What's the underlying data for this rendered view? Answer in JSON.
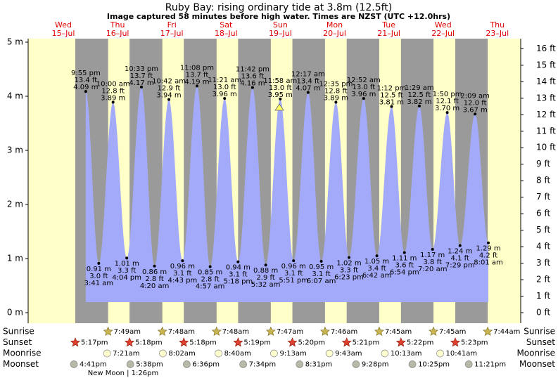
{
  "chart_data": {
    "type": "tide",
    "title": "Ruby Bay: rising  ordinary tide at 3.8m (12.5ft)",
    "subtitle": "Image captured 58 minutes before high water. Times are NZST (UTC +12.0hrs)",
    "days": [
      {
        "weekday": "Wed",
        "date": "15–Jul"
      },
      {
        "weekday": "Thu",
        "date": "16–Jul"
      },
      {
        "weekday": "Fri",
        "date": "17–Jul"
      },
      {
        "weekday": "Sat",
        "date": "18–Jul"
      },
      {
        "weekday": "Sun",
        "date": "19–Jul"
      },
      {
        "weekday": "Mon",
        "date": "20–Jul"
      },
      {
        "weekday": "Tue",
        "date": "21–Jul"
      },
      {
        "weekday": "Wed",
        "date": "22–Jul"
      },
      {
        "weekday": "Thu",
        "date": "23–Jul"
      }
    ],
    "ylim": [
      0,
      5
    ],
    "yticks": [
      {
        "value": 0,
        "label": "0 m"
      },
      {
        "value": 1,
        "label": "1 m"
      },
      {
        "value": 2,
        "label": "2 m"
      },
      {
        "value": 3,
        "label": "3 m"
      },
      {
        "value": 4,
        "label": "4 m"
      },
      {
        "value": 5,
        "label": "5 m"
      }
    ],
    "y2lim": [
      0,
      16.4
    ],
    "y2ticks": [
      {
        "value": 0,
        "label": "0 ft"
      },
      {
        "value": 1,
        "label": "1 ft"
      },
      {
        "value": 2,
        "label": "2 ft"
      },
      {
        "value": 3,
        "label": "3 ft"
      },
      {
        "value": 4,
        "label": "4 ft"
      },
      {
        "value": 5,
        "label": "5 ft"
      },
      {
        "value": 6,
        "label": "6 ft"
      },
      {
        "value": 7,
        "label": "7 ft"
      },
      {
        "value": 8,
        "label": "8 ft"
      },
      {
        "value": 9,
        "label": "9 ft"
      },
      {
        "value": 10,
        "label": "10 ft"
      },
      {
        "value": 11,
        "label": "11 ft"
      },
      {
        "value": 12,
        "label": "12 ft"
      },
      {
        "value": 13,
        "label": "13 ft"
      },
      {
        "value": 14,
        "label": "14 ft"
      },
      {
        "value": 15,
        "label": "15 ft"
      },
      {
        "value": 16,
        "label": "16 ft"
      }
    ],
    "colors": {
      "day": "#ffffc8",
      "night": "#9a9a9a",
      "water": "#a4aafa"
    },
    "tides": [
      {
        "time": "9:55 pm",
        "m": {
          "value": 4.09,
          "label": "4.09 m"
        },
        "ft": {
          "value": 13.4,
          "label": "13.4 ft"
        }
      },
      {
        "time": "3:41 am",
        "m": {
          "value": 0.91,
          "label": "0.91 m"
        },
        "ft": {
          "value": 3.0,
          "label": "3.0 ft"
        }
      },
      {
        "time": "10:00 am",
        "m": {
          "value": 3.89,
          "label": "3.89 m"
        },
        "ft": {
          "value": 12.8,
          "label": "12.8 ft"
        }
      },
      {
        "time": "4:04 pm",
        "m": {
          "value": 1.01,
          "label": "1.01 m"
        },
        "ft": {
          "value": 3.3,
          "label": "3.3 ft"
        }
      },
      {
        "time": "10:33 pm",
        "m": {
          "value": 4.17,
          "label": "4.17 m"
        },
        "ft": {
          "value": 13.7,
          "label": "13.7 ft"
        }
      },
      {
        "time": "4:20 am",
        "m": {
          "value": 0.86,
          "label": "0.86 m"
        },
        "ft": {
          "value": 2.8,
          "label": "2.8 ft"
        }
      },
      {
        "time": "10:42 am",
        "m": {
          "value": 3.94,
          "label": "3.94 m"
        },
        "ft": {
          "value": 12.9,
          "label": "12.9 ft"
        }
      },
      {
        "time": "4:43 pm",
        "m": {
          "value": 0.96,
          "label": "0.96 m"
        },
        "ft": {
          "value": 3.1,
          "label": "3.1 ft"
        }
      },
      {
        "time": "11:08 pm",
        "m": {
          "value": 4.19,
          "label": "4.19 m"
        },
        "ft": {
          "value": 13.7,
          "label": "13.7 ft"
        }
      },
      {
        "time": "4:57 am",
        "m": {
          "value": 0.85,
          "label": "0.85 m"
        },
        "ft": {
          "value": 2.8,
          "label": "2.8 ft"
        }
      },
      {
        "time": "11:21 am",
        "m": {
          "value": 3.96,
          "label": "3.96 m"
        },
        "ft": {
          "value": 13.0,
          "label": "13.0 ft"
        }
      },
      {
        "time": "5:18 pm",
        "m": {
          "value": 0.94,
          "label": "0.94 m"
        },
        "ft": {
          "value": 3.1,
          "label": "3.1 ft"
        }
      },
      {
        "time": "11:42 pm",
        "m": {
          "value": 4.16,
          "label": "4.16 m"
        },
        "ft": {
          "value": 13.6,
          "label": "13.6 ft"
        }
      },
      {
        "time": "5:32 am",
        "m": {
          "value": 0.88,
          "label": "0.88 m"
        },
        "ft": {
          "value": 2.9,
          "label": "2.9 ft"
        }
      },
      {
        "time": "11:58 am",
        "m": {
          "value": 3.95,
          "label": "3.95 m"
        },
        "ft": {
          "value": 13.0,
          "label": "13.0 ft"
        }
      },
      {
        "time": "5:51 pm",
        "m": {
          "value": 0.96,
          "label": "0.96 m"
        },
        "ft": {
          "value": 3.1,
          "label": "3.1 ft"
        }
      },
      {
        "time": "12:17 am",
        "m": {
          "value": 4.07,
          "label": "4.07 m"
        },
        "ft": {
          "value": 13.4,
          "label": "13.4 ft"
        }
      },
      {
        "time": "6:07 am",
        "m": {
          "value": 0.95,
          "label": "0.95 m"
        },
        "ft": {
          "value": 3.1,
          "label": "3.1 ft"
        }
      },
      {
        "time": "12:35 pm",
        "m": {
          "value": 3.89,
          "label": "3.89 m"
        },
        "ft": {
          "value": 12.8,
          "label": "12.8 ft"
        }
      },
      {
        "time": "6:23 pm",
        "m": {
          "value": 1.02,
          "label": "1.02 m"
        },
        "ft": {
          "value": 3.3,
          "label": "3.3 ft"
        }
      },
      {
        "time": "12:52 am",
        "m": {
          "value": 3.96,
          "label": "3.96 m"
        },
        "ft": {
          "value": 13.0,
          "label": "13.0 ft"
        }
      },
      {
        "time": "6:42 am",
        "m": {
          "value": 1.05,
          "label": "1.05 m"
        },
        "ft": {
          "value": 3.4,
          "label": "3.4 ft"
        }
      },
      {
        "time": "1:12 pm",
        "m": {
          "value": 3.81,
          "label": "3.81 m"
        },
        "ft": {
          "value": 12.5,
          "label": "12.5 ft"
        }
      },
      {
        "time": "6:54 pm",
        "m": {
          "value": 1.11,
          "label": "1.11 m"
        },
        "ft": {
          "value": 3.6,
          "label": "3.6 ft"
        }
      },
      {
        "time": "1:29 am",
        "m": {
          "value": 3.82,
          "label": "3.82 m"
        },
        "ft": {
          "value": 12.5,
          "label": "12.5 ft"
        }
      },
      {
        "time": "7:20 am",
        "m": {
          "value": 1.17,
          "label": "1.17 m"
        },
        "ft": {
          "value": 3.8,
          "label": "3.8 ft"
        }
      },
      {
        "time": "1:50 pm",
        "m": {
          "value": 3.7,
          "label": "3.70 m"
        },
        "ft": {
          "value": 12.1,
          "label": "12.1 ft"
        }
      },
      {
        "time": "7:29 pm",
        "m": {
          "value": 1.24,
          "label": "1.24 m"
        },
        "ft": {
          "value": 4.1,
          "label": "4.1 ft"
        }
      },
      {
        "time": "2:09 am",
        "m": {
          "value": 3.67,
          "label": "3.67 m"
        },
        "ft": {
          "value": 12.0,
          "label": "12.0 ft"
        }
      },
      {
        "time": "8:01 am",
        "m": {
          "value": 1.29,
          "label": "1.29 m"
        },
        "ft": {
          "value": 4.2,
          "label": "4.2 ft"
        }
      }
    ],
    "rows": [
      {
        "name": "Sunrise",
        "icon": "sunrise",
        "times": [
          null,
          "7:49am",
          "7:48am",
          "7:48am",
          "7:47am",
          "7:46am",
          "7:45am",
          "7:45am",
          "7:44am"
        ]
      },
      {
        "name": "Sunset",
        "icon": "sunset",
        "times": [
          "5:17pm",
          "5:18pm",
          "5:18pm",
          "5:19pm",
          "5:20pm",
          "5:21pm",
          "5:22pm",
          "5:23pm",
          null
        ]
      },
      {
        "name": "Moonrise",
        "icon": "moonrise",
        "times": [
          null,
          "7:21am",
          "8:02am",
          "8:40am",
          "9:13am",
          "9:43am",
          "10:13am",
          "10:41am",
          null
        ]
      },
      {
        "name": "Moonset",
        "icon": "moonset",
        "times": [
          "4:41pm",
          "5:38pm",
          "6:36pm",
          "7:34pm",
          "8:31pm",
          "9:28pm",
          "10:25pm",
          "11:21pm",
          null
        ]
      }
    ],
    "moon_phase": "New Moon | 1:26pm"
  }
}
